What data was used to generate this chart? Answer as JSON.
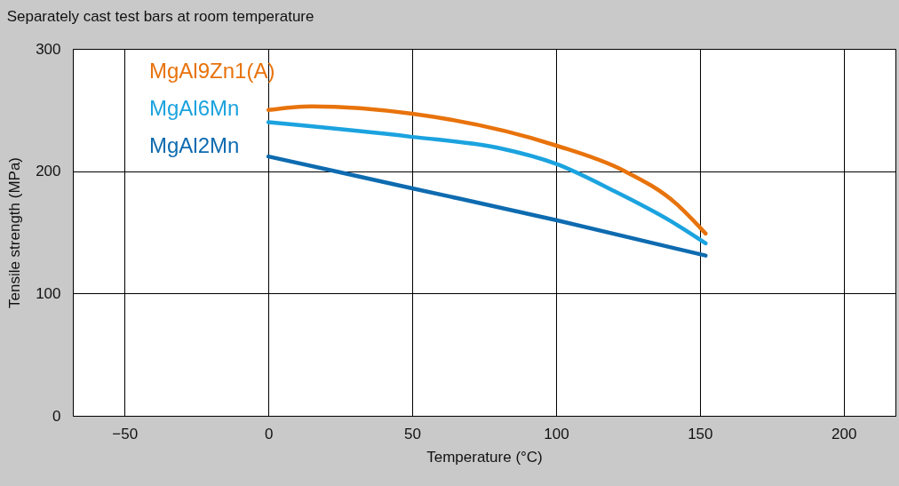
{
  "chart_data": {
    "type": "line",
    "title": "Separately cast test bars at room temperature",
    "xlabel": "Temperature (°C)",
    "ylabel": "Tensile strength (MPa)",
    "xlim": [
      -68,
      218
    ],
    "xticks": [
      -50,
      0,
      50,
      100,
      150,
      200
    ],
    "ylim": [
      0,
      300
    ],
    "yticks": [
      0,
      100,
      200,
      300
    ],
    "grid": true,
    "legend": "top left",
    "line_style": "solid",
    "series": [
      {
        "name": "MgAl9Zn1(A)",
        "color": "#e8730c",
        "x": [
          0,
          15,
          50,
          100,
          123,
          142,
          152
        ],
        "values": [
          250,
          253,
          247,
          221,
          201,
          173,
          149
        ]
      },
      {
        "name": "MgAl6Mn",
        "color": "#1ba3df",
        "x": [
          0,
          50,
          80,
          100,
          120,
          140,
          152
        ],
        "values": [
          240,
          228,
          219,
          206,
          184,
          159,
          141
        ]
      },
      {
        "name": "MgAl2Mn",
        "color": "#0e6bb0",
        "x": [
          0,
          50,
          100,
          152
        ],
        "values": [
          212,
          186,
          160,
          131
        ]
      }
    ]
  }
}
